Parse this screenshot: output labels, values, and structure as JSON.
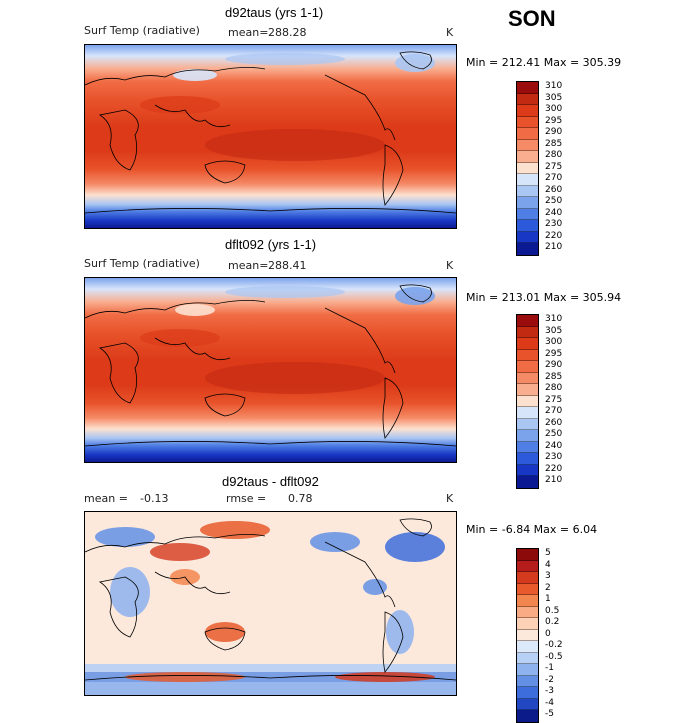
{
  "season": "SON",
  "panels": [
    {
      "title": "d92taus (yrs 1-1)",
      "left_label": "Surf Temp (radiative)",
      "mean_label": "mean=",
      "mean_value": "288.28",
      "units": "K",
      "minmax": "Min = 212.41 Max = 305.39",
      "levels": [
        "310",
        "305",
        "300",
        "295",
        "290",
        "285",
        "280",
        "275",
        "270",
        "260",
        "250",
        "240",
        "230",
        "220",
        "210"
      ],
      "colors": [
        "#9b0d0d",
        "#c32a12",
        "#dc3a18",
        "#e8532b",
        "#f16c45",
        "#f58a66",
        "#f9ae8f",
        "#fde1cf",
        "#d7e5fb",
        "#aac6f3",
        "#7ba3ec",
        "#4f7ee4",
        "#2c5adb",
        "#1837c4",
        "#0b1a92"
      ]
    },
    {
      "title": "dflt092 (yrs 1-1)",
      "left_label": "Surf Temp (radiative)",
      "mean_label": "mean=",
      "mean_value": "288.41",
      "units": "K",
      "minmax": "Min = 213.01 Max = 305.94",
      "levels": [
        "310",
        "305",
        "300",
        "295",
        "290",
        "285",
        "280",
        "275",
        "270",
        "260",
        "250",
        "240",
        "230",
        "220",
        "210"
      ],
      "colors": [
        "#9b0d0d",
        "#c32a12",
        "#dc3a18",
        "#e8532b",
        "#f16c45",
        "#f58a66",
        "#f9ae8f",
        "#fde1cf",
        "#d7e5fb",
        "#aac6f3",
        "#7ba3ec",
        "#4f7ee4",
        "#2c5adb",
        "#1837c4",
        "#0b1a92"
      ]
    },
    {
      "title": "d92taus - dflt092",
      "mean_label": "mean =",
      "mean_value": "-0.13",
      "rmse_label": "rmse =",
      "rmse_value": "0.78",
      "units": "K",
      "minmax": "Min = -6.84 Max = 6.04",
      "levels": [
        "5",
        "4",
        "3",
        "2",
        "1",
        "0.5",
        "0.2",
        "0",
        "-0.2",
        "-0.5",
        "-1",
        "-2",
        "-3",
        "-4",
        "-5"
      ],
      "colors": [
        "#8c0a0a",
        "#b51d1d",
        "#d43a1e",
        "#e85a2c",
        "#f3864f",
        "#f9ab85",
        "#fcd1b6",
        "#fde9dc",
        "#dce9fb",
        "#b7d0f5",
        "#8db2ee",
        "#6390e5",
        "#3d6ddc",
        "#2147c2",
        "#0c1b8a"
      ]
    }
  ]
}
